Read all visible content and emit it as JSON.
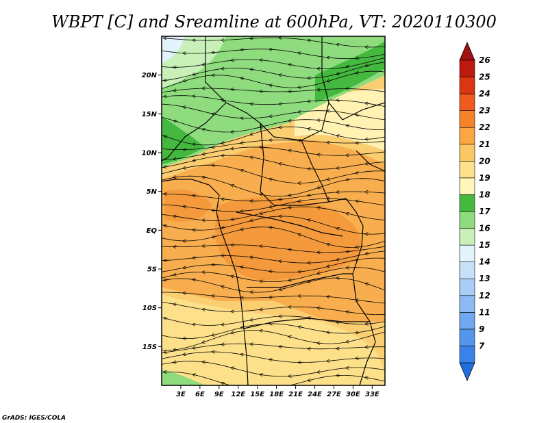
{
  "title": "WBPT [C] and Sreamline at 600hPa, VT: 2020110300",
  "credit": "GrADS: IGES/COLA",
  "map": {
    "lon_range": [
      0,
      35
    ],
    "lat_range": [
      -20,
      25
    ],
    "lat_ticks": [
      {
        "value": 20,
        "label": "20N"
      },
      {
        "value": 15,
        "label": "15N"
      },
      {
        "value": 10,
        "label": "10N"
      },
      {
        "value": 5,
        "label": "5N"
      },
      {
        "value": 0,
        "label": "EQ"
      },
      {
        "value": -5,
        "label": "5S"
      },
      {
        "value": -10,
        "label": "10S"
      },
      {
        "value": -15,
        "label": "15S"
      }
    ],
    "lon_ticks": [
      {
        "value": 3,
        "label": "3E"
      },
      {
        "value": 6,
        "label": "6E"
      },
      {
        "value": 9,
        "label": "9E"
      },
      {
        "value": 12,
        "label": "12E"
      },
      {
        "value": 15,
        "label": "15E"
      },
      {
        "value": 18,
        "label": "18E"
      },
      {
        "value": 21,
        "label": "21E"
      },
      {
        "value": 24,
        "label": "24E"
      },
      {
        "value": 27,
        "label": "27E"
      },
      {
        "value": 30,
        "label": "30E"
      },
      {
        "value": 33,
        "label": "33E"
      }
    ]
  },
  "colorbar": {
    "arrow_low_color": "#1f6fe0",
    "arrow_high_color": "#a01010",
    "levels": [
      {
        "label": "7",
        "color": "#3a82e8"
      },
      {
        "label": "9",
        "color": "#5596ec"
      },
      {
        "label": "11",
        "color": "#6fa8f0"
      },
      {
        "label": "12",
        "color": "#8dbaf2"
      },
      {
        "label": "13",
        "color": "#a9cdf5"
      },
      {
        "label": "14",
        "color": "#c6e0f8"
      },
      {
        "label": "15",
        "color": "#e2f3fb"
      },
      {
        "label": "16",
        "color": "#c8f0b8"
      },
      {
        "label": "17",
        "color": "#8fdc7e"
      },
      {
        "label": "18",
        "color": "#45b83f"
      },
      {
        "label": "19",
        "color": "#fff6bc"
      },
      {
        "label": "20",
        "color": "#fde08a"
      },
      {
        "label": "21",
        "color": "#fbc765"
      },
      {
        "label": "22",
        "color": "#f9a643"
      },
      {
        "label": "23",
        "color": "#f58429"
      },
      {
        "label": "24",
        "color": "#ee5b1c"
      },
      {
        "label": "25",
        "color": "#dc3513"
      },
      {
        "label": "26",
        "color": "#bc1a0e"
      }
    ]
  }
}
